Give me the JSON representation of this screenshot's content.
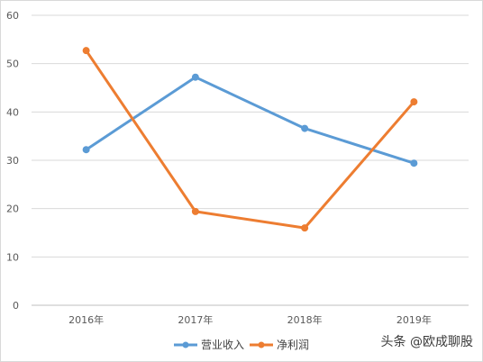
{
  "chart_data": {
    "type": "line",
    "categories": [
      "2016年",
      "2017年",
      "2018年",
      "2019年"
    ],
    "series": [
      {
        "name": "营业收入",
        "color": "#5b9bd5",
        "values": [
          32.2,
          47.2,
          36.6,
          29.4
        ]
      },
      {
        "name": "净利润",
        "color": "#ed7d31",
        "values": [
          52.7,
          19.4,
          16.0,
          42.1
        ]
      }
    ],
    "ylim": [
      0,
      60
    ],
    "yticks": [
      0,
      10,
      20,
      30,
      40,
      50,
      60
    ],
    "grid": true,
    "legend": "bottom"
  },
  "watermark": "头条 @欧成聊股"
}
